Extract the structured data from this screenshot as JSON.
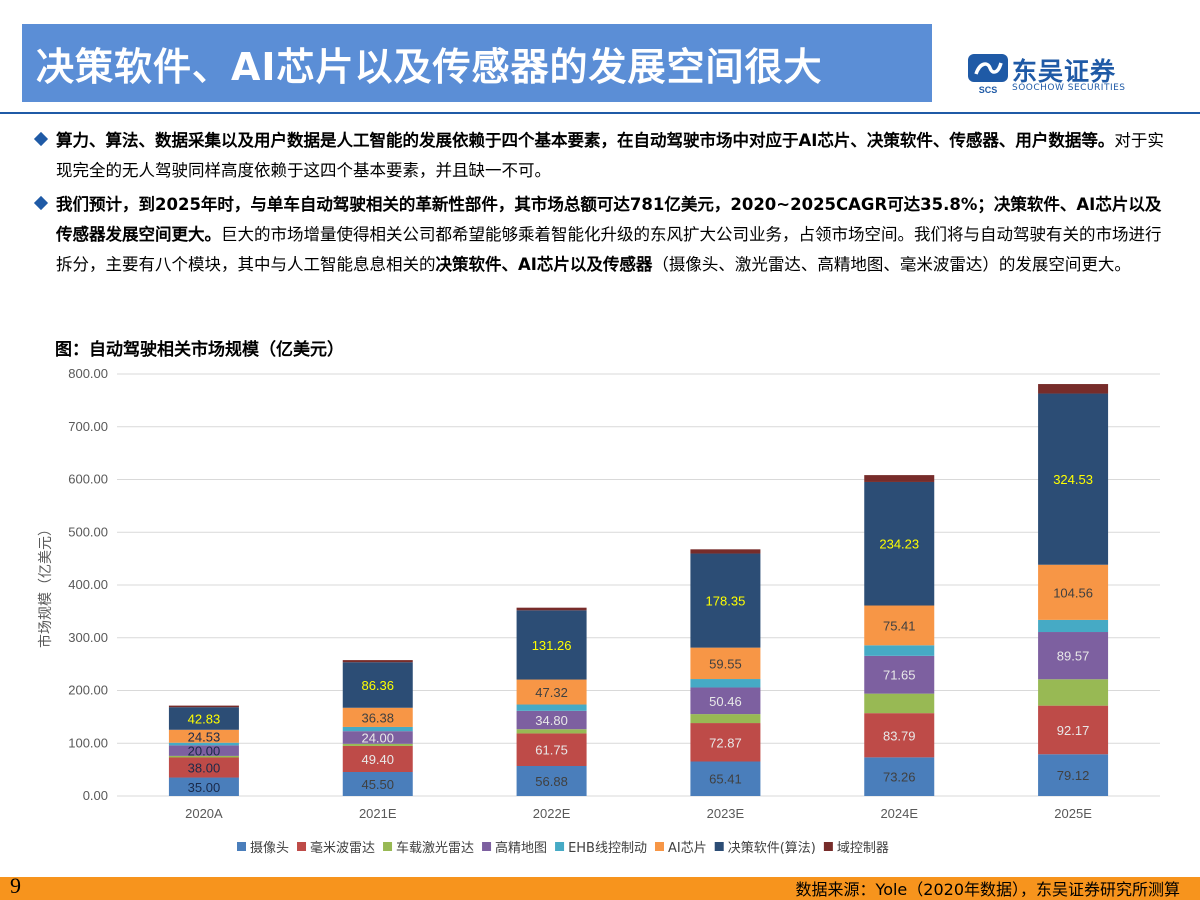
{
  "header": {
    "title": "决策软件、AI芯片以及传感器的发展空间很大",
    "logo_name": "东吴证券",
    "logo_abbr": "SCS",
    "logo_sub": "SOOCHOW SECURITIES"
  },
  "bullets": [
    {
      "bold": "算力、算法、数据采集以及用户数据是人工智能的发展依赖于四个基本要素，在自动驾驶市场中对应于AI芯片、决策软件、传感器、用户数据等。",
      "normal": "对于实现完全的无人驾驶同样高度依赖于这四个基本要素，并且缺一不可。"
    },
    {
      "bold": "我们预计，到2025年时，与单车自动驾驶相关的革新性部件，其市场总额可达781亿美元，2020~2025CAGR可达35.8%；决策软件、AI芯片以及传感器发展空间更大。",
      "normal": "巨大的市场增量使得相关公司都希望能够乘着智能化升级的东风扩大公司业务，占领市场空间。我们将与自动驾驶有关的市场进行拆分，主要有八个模块，其中与人工智能息息相关的",
      "bold2": "决策软件、AI芯片以及传感器",
      "normal2": "（摄像头、激光雷达、高精地图、毫米波雷达）的发展空间更大。"
    }
  ],
  "chart_caption": "图：自动驾驶相关市场规模（亿美元）",
  "chart_data": {
    "type": "bar",
    "stacked": true,
    "categories": [
      "2020A",
      "2021E",
      "2022E",
      "2023E",
      "2024E",
      "2025E"
    ],
    "ylabel": "市场规模（亿美元）",
    "ylim": [
      0,
      800
    ],
    "yticks": [
      "0.00",
      "100.00",
      "200.00",
      "300.00",
      "400.00",
      "500.00",
      "600.00",
      "700.00",
      "800.00"
    ],
    "grid": true,
    "legend_position": "bottom",
    "series": [
      {
        "name": "摄像头",
        "color": "#4a7ebb",
        "values": [
          35.0,
          45.5,
          56.88,
          65.41,
          73.26,
          79.12
        ],
        "labels": [
          "35.00",
          "45.50",
          "56.88",
          "65.41",
          "73.26",
          "79.12"
        ]
      },
      {
        "name": "毫米波雷达",
        "color": "#be4b48",
        "values": [
          38.0,
          49.4,
          61.75,
          72.87,
          83.79,
          92.17
        ],
        "labels": [
          "38.00",
          "49.40",
          "61.75",
          "72.87",
          "83.79",
          "92.17"
        ]
      },
      {
        "name": "车载激光雷达",
        "color": "#98b954",
        "values": [
          3,
          4,
          8,
          17,
          37,
          50
        ]
      },
      {
        "name": "高精地图",
        "color": "#7d60a0",
        "values": [
          20.0,
          24.0,
          34.8,
          50.46,
          71.65,
          89.57
        ],
        "labels": [
          "20.00",
          "24.00",
          "34.80",
          "50.46",
          "71.65",
          "89.57"
        ]
      },
      {
        "name": "EHB线控制动",
        "color": "#46aac5",
        "values": [
          5,
          8,
          12,
          16,
          20,
          23
        ]
      },
      {
        "name": "AI芯片",
        "color": "#f79646",
        "values": [
          24.53,
          36.38,
          47.32,
          59.55,
          75.41,
          104.56
        ],
        "labels": [
          "24.53",
          "36.38",
          "47.32",
          "59.55",
          "75.41",
          "104.56"
        ]
      },
      {
        "name": "决策软件(算法)",
        "color": "#2c4d75",
        "values": [
          42.83,
          86.36,
          131.26,
          178.35,
          234.23,
          324.53
        ],
        "labels": [
          "42.83",
          "86.36",
          "131.26",
          "178.35",
          "234.23",
          "324.53"
        ]
      },
      {
        "name": "域控制器",
        "color": "#772c2a",
        "values": [
          3,
          4,
          5,
          8,
          13,
          18
        ]
      }
    ]
  },
  "footer": {
    "page_number": "9",
    "source": "数据来源：Yole（2020年数据），东吴证券研究所测算"
  }
}
